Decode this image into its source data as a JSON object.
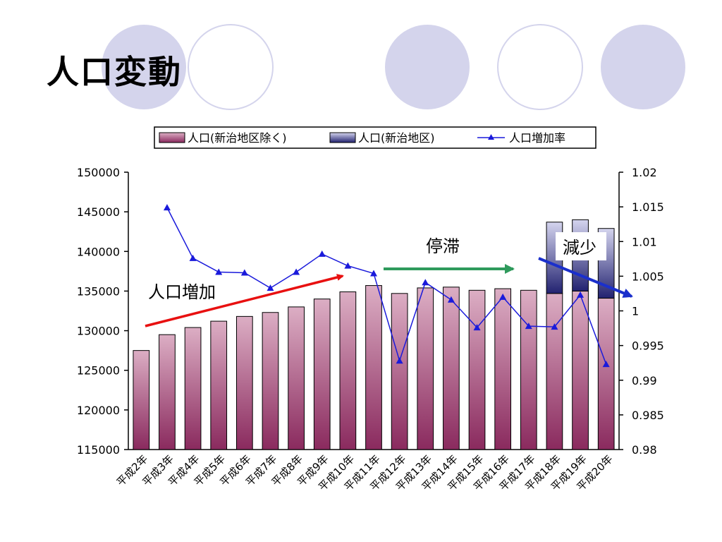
{
  "slide": {
    "title": "人口変動",
    "colors": {
      "circle_fill": "#d4d4ec",
      "circle_stroke": "#d4d4ec"
    }
  },
  "chart_data": {
    "type": "bar",
    "categories": [
      "平成2年",
      "平成3年",
      "平成4年",
      "平成5年",
      "平成6年",
      "平成7年",
      "平成8年",
      "平成9年",
      "平成10年",
      "平成11年",
      "平成12年",
      "平成13年",
      "平成14年",
      "平成15年",
      "平成16年",
      "平成17年",
      "平成18年",
      "平成19年",
      "平成20年"
    ],
    "series": [
      {
        "name": "人口(新治地区除く)",
        "type": "bar",
        "axis": "left",
        "color": "#9b3e6e",
        "values": [
          127500,
          129500,
          130400,
          131200,
          131800,
          132300,
          133000,
          134000,
          134900,
          135700,
          134700,
          135400,
          135500,
          135100,
          135300,
          135100,
          134700,
          135000,
          134100
        ]
      },
      {
        "name": "人口(新治地区)",
        "type": "bar-stacked",
        "axis": "left",
        "color": "#27277a",
        "values": [
          null,
          null,
          null,
          null,
          null,
          null,
          null,
          null,
          null,
          null,
          null,
          null,
          null,
          null,
          null,
          null,
          9000,
          9000,
          8800
        ]
      },
      {
        "name": "人口増加率",
        "type": "line",
        "axis": "right",
        "color": "#1a1adb",
        "marker": "triangle",
        "values": [
          null,
          1.0149,
          1.0076,
          1.0056,
          1.0055,
          1.0033,
          1.0056,
          1.0082,
          1.0065,
          1.0054,
          0.9928,
          1.0041,
          1.0016,
          0.9976,
          1.002,
          0.9978,
          0.9977,
          1.0023,
          0.9923
        ]
      }
    ],
    "y_left": {
      "min": 115000,
      "max": 150000,
      "step": 5000,
      "ticks": [
        "150000",
        "145000",
        "140000",
        "135000",
        "130000",
        "125000",
        "120000",
        "115000"
      ]
    },
    "y_right": {
      "min": 0.98,
      "max": 1.02,
      "step": 0.005,
      "ticks": [
        "1.02",
        "1.015",
        "1.01",
        "1.005",
        "1",
        "0.995",
        "0.99",
        "0.985",
        "0.98"
      ]
    },
    "legend_position": "top",
    "grid": false,
    "annotations": [
      {
        "text": "人口増加",
        "arrow_color": "#e81010"
      },
      {
        "text": "停滞",
        "arrow_color": "#2f9a5c"
      },
      {
        "text": "減少",
        "arrow_color": "#1a2fcc"
      }
    ]
  }
}
